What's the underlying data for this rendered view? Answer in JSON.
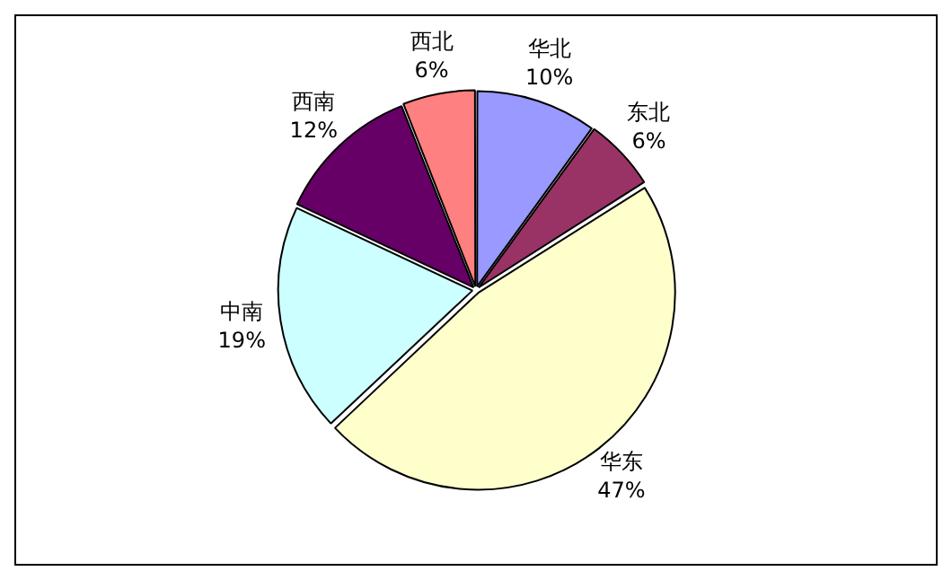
{
  "chart_data": {
    "type": "pie",
    "categories": [
      "华北",
      "东北",
      "华东",
      "中南",
      "西南",
      "西北"
    ],
    "values": [
      10,
      6,
      47,
      19,
      12,
      6
    ],
    "colors": [
      "#9999ff",
      "#993366",
      "#ffffcc",
      "#ccffff",
      "#660066",
      "#ff8080"
    ],
    "value_labels": [
      "10%",
      "6%",
      "47%",
      "19%",
      "12%",
      "6%"
    ],
    "legend": false
  }
}
